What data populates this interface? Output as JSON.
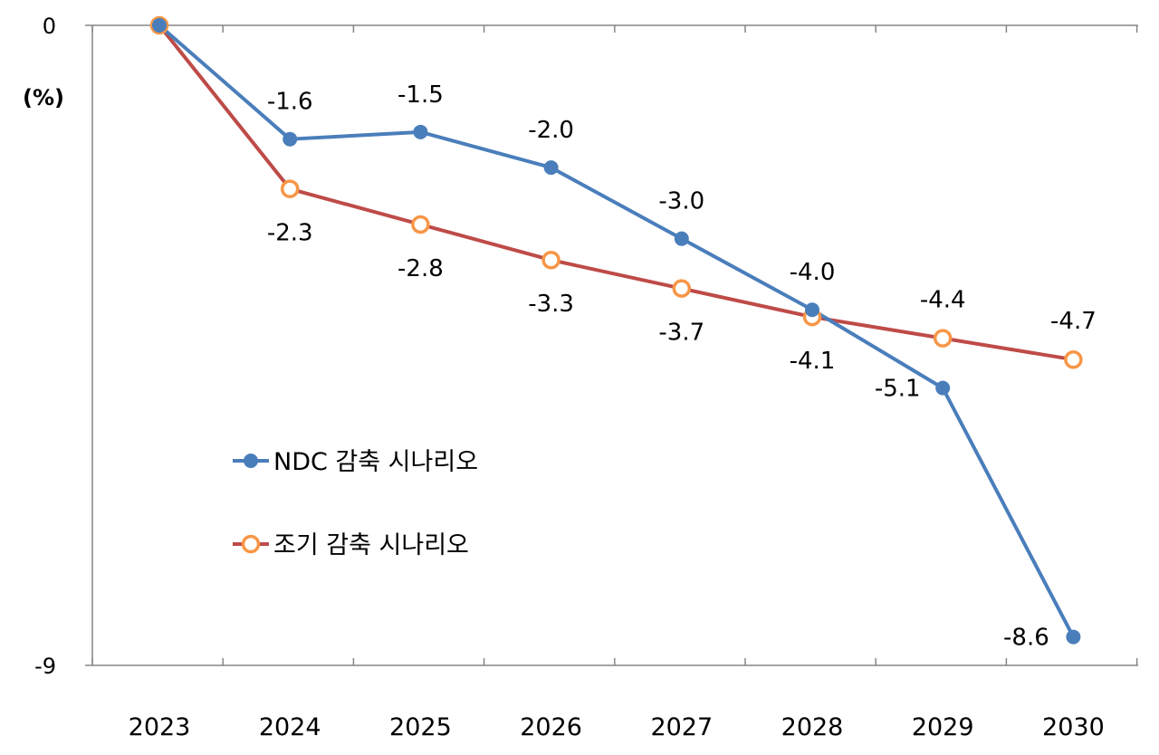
{
  "chart_data": {
    "type": "line",
    "x": [
      "2023",
      "2024",
      "2025",
      "2026",
      "2027",
      "2028",
      "2029",
      "2030"
    ],
    "ylim": [
      -9,
      0
    ],
    "yticks": [
      "0",
      "-9"
    ],
    "ylabel": "(%)",
    "grid": false,
    "legend_position": "lower-left",
    "series": [
      {
        "name": "NDC 감축 시나리오",
        "values": [
          0,
          -1.6,
          -1.5,
          -2.0,
          -3.0,
          -4.0,
          -5.1,
          -8.6
        ],
        "labels": [
          "",
          "-1.6",
          "-1.5",
          "-2.0",
          "-3.0",
          "-4.0",
          "-5.1",
          "-8.6"
        ],
        "line_color": "#4a7ebb",
        "marker_color": "#4a7ebb",
        "marker": "filled-circle"
      },
      {
        "name": "조기 감축 시나리오",
        "values": [
          0,
          -2.3,
          -2.8,
          -3.3,
          -3.7,
          -4.1,
          -4.4,
          -4.7
        ],
        "labels": [
          "",
          "-2.3",
          "-2.8",
          "-3.3",
          "-3.7",
          "-4.1",
          "-4.4",
          "-4.7"
        ],
        "line_color": "#be4b48",
        "marker_color": "#f79646",
        "marker": "hollow-circle"
      }
    ]
  }
}
